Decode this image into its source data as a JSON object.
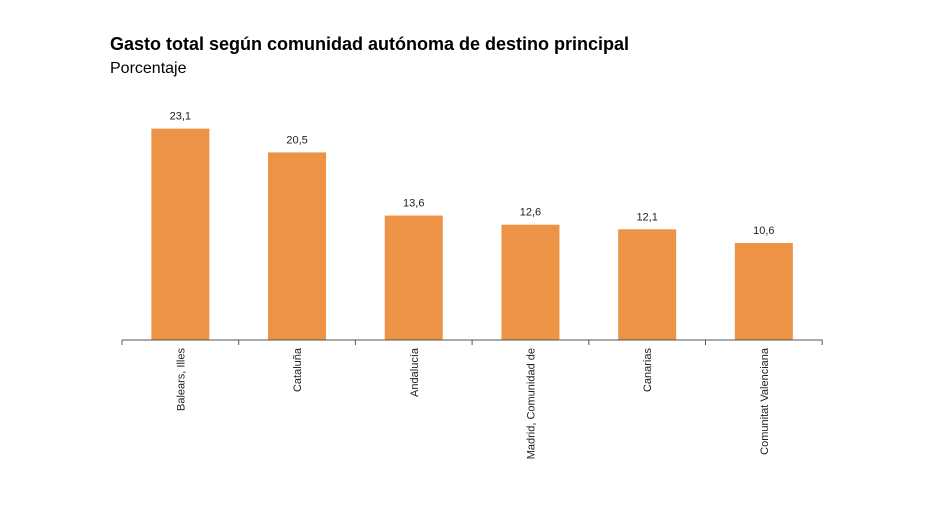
{
  "chart_data": {
    "type": "bar",
    "title": "Gasto total según comunidad autónoma de destino principal",
    "subtitle": "Porcentaje",
    "xlabel": "",
    "ylabel": "",
    "categories": [
      "Balears, Illes",
      "Cataluña",
      "Andalucía",
      "Madrid, Comunidad de",
      "Canarias",
      "Comunitat Valenciana"
    ],
    "values": [
      23.1,
      20.5,
      13.6,
      12.6,
      12.1,
      10.6
    ],
    "data_labels": [
      "23,1",
      "20,5",
      "13,6",
      "12,6",
      "12,1",
      "10,6"
    ],
    "ylim": [
      0,
      25
    ],
    "grid": false,
    "legend": "none",
    "colors": {
      "bar": "#ED9345",
      "axis": "#555555"
    }
  }
}
